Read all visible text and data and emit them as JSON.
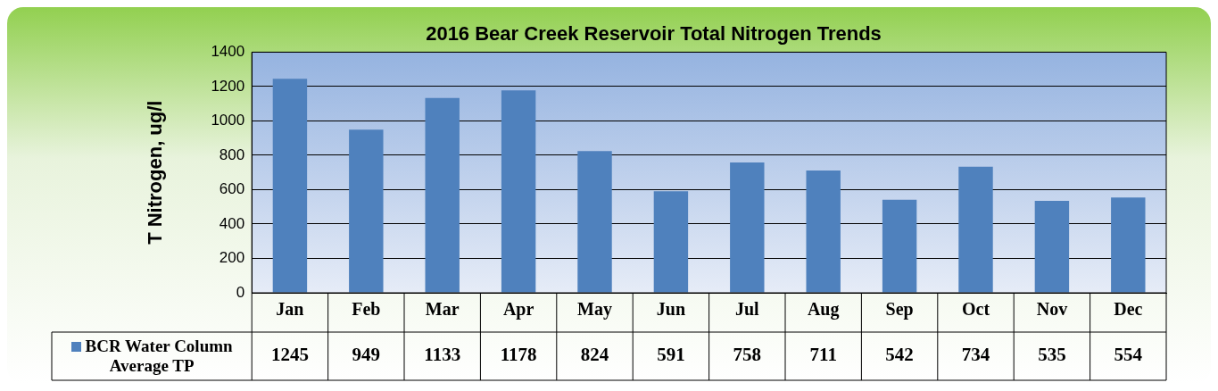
{
  "chart_data": {
    "type": "bar",
    "title": "2016 Bear Creek Reservoir Total Nitrogen Trends",
    "ylabel": "T Nitrogen, ug/l",
    "categories": [
      "Jan",
      "Feb",
      "Mar",
      "Apr",
      "May",
      "Jun",
      "Jul",
      "Aug",
      "Sep",
      "Oct",
      "Nov",
      "Dec"
    ],
    "series": [
      {
        "name": "BCR Water Column Average TP",
        "color": "#4f81bd",
        "values": [
          1245,
          949,
          1133,
          1178,
          824,
          591,
          758,
          711,
          542,
          734,
          535,
          554
        ]
      }
    ],
    "ylim": [
      0,
      1400
    ],
    "yticks": [
      0,
      200,
      400,
      600,
      800,
      1000,
      1200,
      1400
    ],
    "grid": "y",
    "legend": "bottom",
    "data_labels": true
  }
}
